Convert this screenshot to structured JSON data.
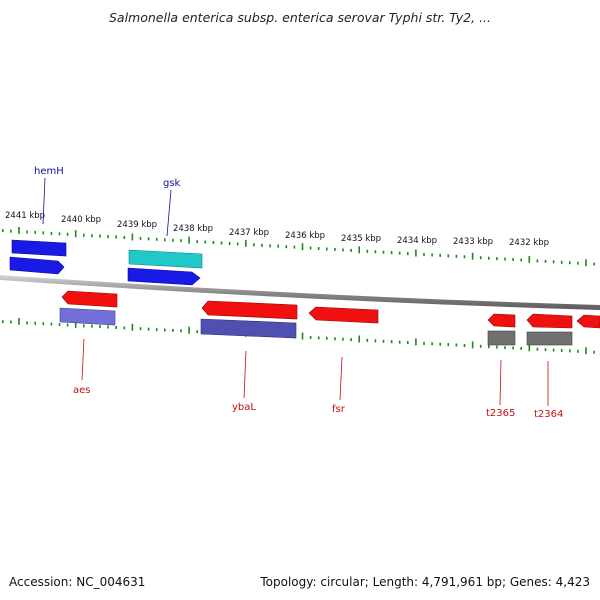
{
  "header": {
    "title": "Salmonella enterica subsp. enterica serovar Typhi str. Ty2, ..."
  },
  "footer": {
    "accession": "Accession: NC_004631",
    "summary": "Topology: circular; Length: 4,791,961 bp; Genes: 4,423"
  },
  "scale_labels": [
    "2441 kbp",
    "2440 kbp",
    "2439 kbp",
    "2438 kbp",
    "2437 kbp",
    "2436 kbp",
    "2435 kbp",
    "2434 kbp",
    "2433 kbp",
    "2432 kbp"
  ],
  "genes": [
    {
      "name": "hemH",
      "strand": "forward"
    },
    {
      "name": "gsk",
      "strand": "forward"
    },
    {
      "name": "aes",
      "strand": "reverse"
    },
    {
      "name": "ybaL",
      "strand": "reverse"
    },
    {
      "name": "fsr",
      "strand": "reverse"
    },
    {
      "name": "t2365",
      "strand": "reverse"
    },
    {
      "name": "t2364",
      "strand": "reverse"
    }
  ],
  "colors": {
    "forward_gene": "#1a1ae6",
    "forward_gene_alt": "#20c8c8",
    "reverse_gene": "#f01010",
    "reverse_feature": "#5050b0",
    "reverse_feature_light": "#7070d8",
    "rna_feature": "#707070",
    "backbone": "#8a8a8a",
    "tick": "#1a8a1a",
    "label_forward": "#1010a0",
    "label_reverse": "#c01010"
  }
}
